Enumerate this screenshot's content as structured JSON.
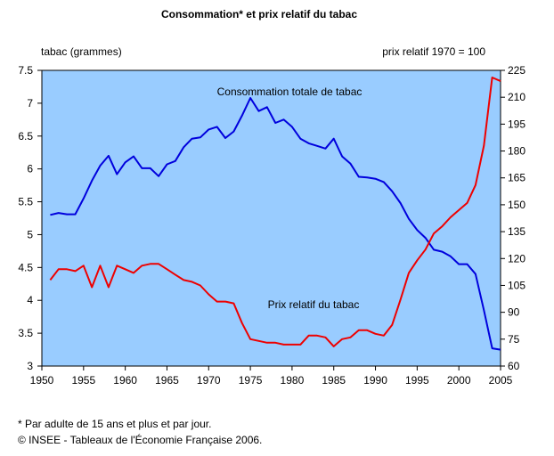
{
  "chart_data": {
    "type": "line",
    "title": "Consommation* et prix relatif du tabac",
    "left_axis_label": "tabac (grammes)",
    "right_axis_label": "prix relatif 1970 = 100",
    "xlim": [
      1950,
      2005
    ],
    "ylim_left": [
      3,
      7.5
    ],
    "ylim_right": [
      60,
      225
    ],
    "x_ticks": [
      "1950",
      "1955",
      "1960",
      "1965",
      "1970",
      "1975",
      "1980",
      "1985",
      "1990",
      "1995",
      "2000",
      "2005"
    ],
    "y_left_ticks": [
      "3",
      "3.5",
      "4",
      "4.5",
      "5",
      "5.5",
      "6",
      "6.5",
      "7",
      "7.5"
    ],
    "y_right_ticks": [
      "60",
      "75",
      "90",
      "105",
      "120",
      "135",
      "150",
      "165",
      "180",
      "195",
      "210",
      "225"
    ],
    "series": [
      {
        "name": "Consommation totale de tabac",
        "axis": "left",
        "color": "#0000dd",
        "x": [
          1951,
          1952,
          1953,
          1954,
          1955,
          1956,
          1957,
          1958,
          1959,
          1960,
          1961,
          1962,
          1963,
          1964,
          1965,
          1966,
          1967,
          1968,
          1969,
          1970,
          1971,
          1972,
          1973,
          1974,
          1975,
          1976,
          1977,
          1978,
          1979,
          1980,
          1981,
          1982,
          1983,
          1984,
          1985,
          1986,
          1987,
          1988,
          1989,
          1990,
          1991,
          1992,
          1993,
          1994,
          1995,
          1996,
          1997,
          1998,
          1999,
          2000,
          2001,
          2002,
          2003,
          2004,
          2005
        ],
        "values": [
          5.3,
          5.33,
          5.31,
          5.31,
          5.55,
          5.82,
          6.05,
          6.2,
          5.92,
          6.1,
          6.19,
          6.01,
          6.01,
          5.89,
          6.07,
          6.12,
          6.33,
          6.46,
          6.48,
          6.6,
          6.64,
          6.47,
          6.57,
          6.81,
          7.08,
          6.88,
          6.94,
          6.7,
          6.75,
          6.64,
          6.46,
          6.39,
          6.35,
          6.31,
          6.46,
          6.19,
          6.08,
          5.88,
          5.87,
          5.85,
          5.8,
          5.66,
          5.48,
          5.24,
          5.07,
          4.95,
          4.77,
          4.74,
          4.67,
          4.55,
          4.55,
          4.4,
          3.85,
          3.27,
          3.25
        ]
      },
      {
        "name": "Prix relatif du tabac",
        "axis": "right",
        "color": "#ee0000",
        "x": [
          1951,
          1952,
          1953,
          1954,
          1955,
          1956,
          1957,
          1958,
          1959,
          1960,
          1961,
          1962,
          1963,
          1964,
          1965,
          1966,
          1967,
          1968,
          1969,
          1970,
          1971,
          1972,
          1973,
          1974,
          1975,
          1976,
          1977,
          1978,
          1979,
          1980,
          1981,
          1982,
          1983,
          1984,
          1985,
          1986,
          1987,
          1988,
          1989,
          1990,
          1991,
          1992,
          1993,
          1994,
          1995,
          1996,
          1997,
          1998,
          1999,
          2000,
          2001,
          2002,
          2003,
          2004,
          2005
        ],
        "values": [
          108,
          114,
          114,
          113,
          116,
          104,
          116,
          104,
          116,
          114,
          112,
          116,
          117,
          117,
          114,
          111,
          108,
          107,
          105,
          100,
          96,
          96,
          95,
          84,
          75,
          74,
          73,
          73,
          72,
          72,
          72,
          77,
          77,
          76,
          71,
          75,
          76,
          80,
          80,
          78,
          77,
          83,
          97,
          112,
          119,
          125,
          134,
          138,
          143,
          147,
          151,
          161,
          183,
          221,
          219
        ]
      }
    ],
    "annotations": {
      "consumption_label": "Consommation totale de tabac",
      "price_label": "Prix relatif du tabac"
    }
  },
  "footnotes": {
    "line1": "* Par adulte de 15 ans et plus et par jour.",
    "line2": "© INSEE - Tableaux de l'Économie Française 2006."
  }
}
